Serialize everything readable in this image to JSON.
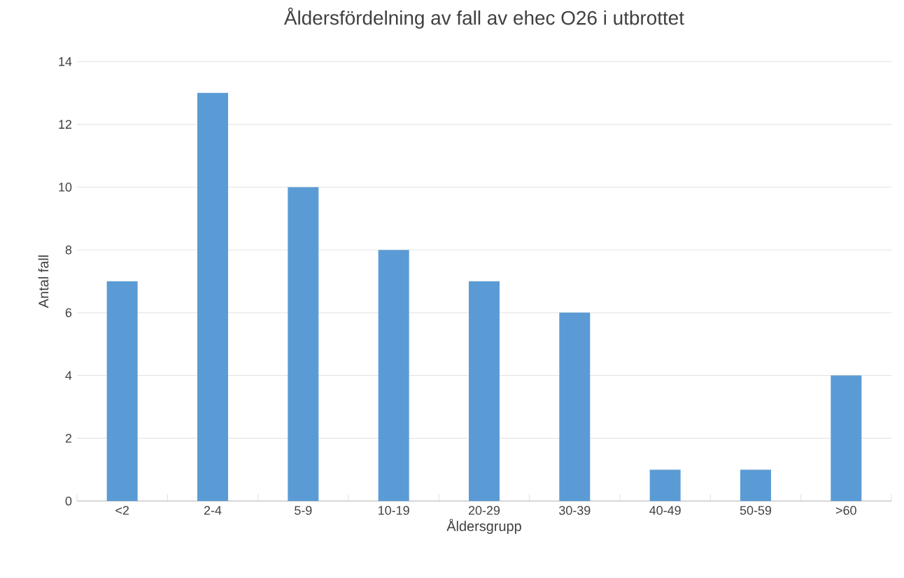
{
  "chart_data": {
    "type": "bar",
    "title": "Åldersfördelning av fall av ehec O26 i utbrottet",
    "xlabel": "Åldersgrupp",
    "ylabel": "Antal fall",
    "categories": [
      "<2",
      "2-4",
      "5-9",
      "10-19",
      "20-29",
      "30-39",
      "40-49",
      "50-59",
      ">60"
    ],
    "values": [
      7,
      13,
      10,
      8,
      7,
      6,
      1,
      1,
      4
    ],
    "color": "#5b9bd5",
    "ylim": [
      0,
      14
    ],
    "yticks": [
      0,
      2,
      4,
      6,
      8,
      10,
      12,
      14
    ],
    "grid": "y"
  }
}
